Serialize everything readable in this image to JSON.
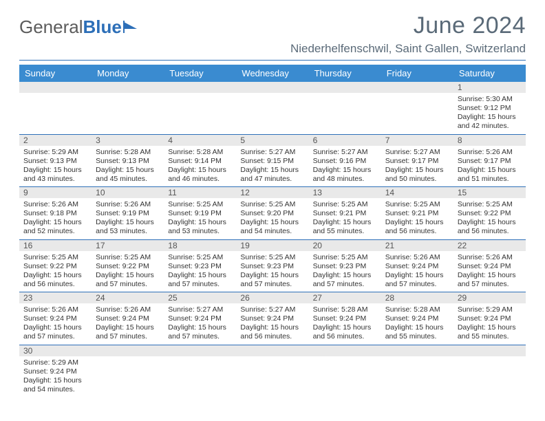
{
  "logo": {
    "text1": "General",
    "text2": "Blue"
  },
  "title": "June 2024",
  "subtitle": "Niederhelfenschwil, Saint Gallen, Switzerland",
  "colors": {
    "header_bg": "#3a8bd0",
    "rule": "#2d6fb8",
    "daynum_bg": "#e9e9e9",
    "title_color": "#5a6a78",
    "logo_gray": "#5c5c5c",
    "logo_blue": "#2d6fb8"
  },
  "dayNames": [
    "Sunday",
    "Monday",
    "Tuesday",
    "Wednesday",
    "Thursday",
    "Friday",
    "Saturday"
  ],
  "weeks": [
    [
      null,
      null,
      null,
      null,
      null,
      null,
      {
        "n": "1",
        "sr": "5:30 AM",
        "ss": "9:12 PM",
        "dl": "15 hours and 42 minutes."
      }
    ],
    [
      {
        "n": "2",
        "sr": "5:29 AM",
        "ss": "9:13 PM",
        "dl": "15 hours and 43 minutes."
      },
      {
        "n": "3",
        "sr": "5:28 AM",
        "ss": "9:13 PM",
        "dl": "15 hours and 45 minutes."
      },
      {
        "n": "4",
        "sr": "5:28 AM",
        "ss": "9:14 PM",
        "dl": "15 hours and 46 minutes."
      },
      {
        "n": "5",
        "sr": "5:27 AM",
        "ss": "9:15 PM",
        "dl": "15 hours and 47 minutes."
      },
      {
        "n": "6",
        "sr": "5:27 AM",
        "ss": "9:16 PM",
        "dl": "15 hours and 48 minutes."
      },
      {
        "n": "7",
        "sr": "5:27 AM",
        "ss": "9:17 PM",
        "dl": "15 hours and 50 minutes."
      },
      {
        "n": "8",
        "sr": "5:26 AM",
        "ss": "9:17 PM",
        "dl": "15 hours and 51 minutes."
      }
    ],
    [
      {
        "n": "9",
        "sr": "5:26 AM",
        "ss": "9:18 PM",
        "dl": "15 hours and 52 minutes."
      },
      {
        "n": "10",
        "sr": "5:26 AM",
        "ss": "9:19 PM",
        "dl": "15 hours and 53 minutes."
      },
      {
        "n": "11",
        "sr": "5:25 AM",
        "ss": "9:19 PM",
        "dl": "15 hours and 53 minutes."
      },
      {
        "n": "12",
        "sr": "5:25 AM",
        "ss": "9:20 PM",
        "dl": "15 hours and 54 minutes."
      },
      {
        "n": "13",
        "sr": "5:25 AM",
        "ss": "9:21 PM",
        "dl": "15 hours and 55 minutes."
      },
      {
        "n": "14",
        "sr": "5:25 AM",
        "ss": "9:21 PM",
        "dl": "15 hours and 56 minutes."
      },
      {
        "n": "15",
        "sr": "5:25 AM",
        "ss": "9:22 PM",
        "dl": "15 hours and 56 minutes."
      }
    ],
    [
      {
        "n": "16",
        "sr": "5:25 AM",
        "ss": "9:22 PM",
        "dl": "15 hours and 56 minutes."
      },
      {
        "n": "17",
        "sr": "5:25 AM",
        "ss": "9:22 PM",
        "dl": "15 hours and 57 minutes."
      },
      {
        "n": "18",
        "sr": "5:25 AM",
        "ss": "9:23 PM",
        "dl": "15 hours and 57 minutes."
      },
      {
        "n": "19",
        "sr": "5:25 AM",
        "ss": "9:23 PM",
        "dl": "15 hours and 57 minutes."
      },
      {
        "n": "20",
        "sr": "5:25 AM",
        "ss": "9:23 PM",
        "dl": "15 hours and 57 minutes."
      },
      {
        "n": "21",
        "sr": "5:26 AM",
        "ss": "9:24 PM",
        "dl": "15 hours and 57 minutes."
      },
      {
        "n": "22",
        "sr": "5:26 AM",
        "ss": "9:24 PM",
        "dl": "15 hours and 57 minutes."
      }
    ],
    [
      {
        "n": "23",
        "sr": "5:26 AM",
        "ss": "9:24 PM",
        "dl": "15 hours and 57 minutes."
      },
      {
        "n": "24",
        "sr": "5:26 AM",
        "ss": "9:24 PM",
        "dl": "15 hours and 57 minutes."
      },
      {
        "n": "25",
        "sr": "5:27 AM",
        "ss": "9:24 PM",
        "dl": "15 hours and 57 minutes."
      },
      {
        "n": "26",
        "sr": "5:27 AM",
        "ss": "9:24 PM",
        "dl": "15 hours and 56 minutes."
      },
      {
        "n": "27",
        "sr": "5:28 AM",
        "ss": "9:24 PM",
        "dl": "15 hours and 56 minutes."
      },
      {
        "n": "28",
        "sr": "5:28 AM",
        "ss": "9:24 PM",
        "dl": "15 hours and 55 minutes."
      },
      {
        "n": "29",
        "sr": "5:29 AM",
        "ss": "9:24 PM",
        "dl": "15 hours and 55 minutes."
      }
    ],
    [
      {
        "n": "30",
        "sr": "5:29 AM",
        "ss": "9:24 PM",
        "dl": "15 hours and 54 minutes."
      },
      null,
      null,
      null,
      null,
      null,
      null
    ]
  ],
  "labels": {
    "sunrise": "Sunrise:",
    "sunset": "Sunset:",
    "daylight": "Daylight:"
  }
}
